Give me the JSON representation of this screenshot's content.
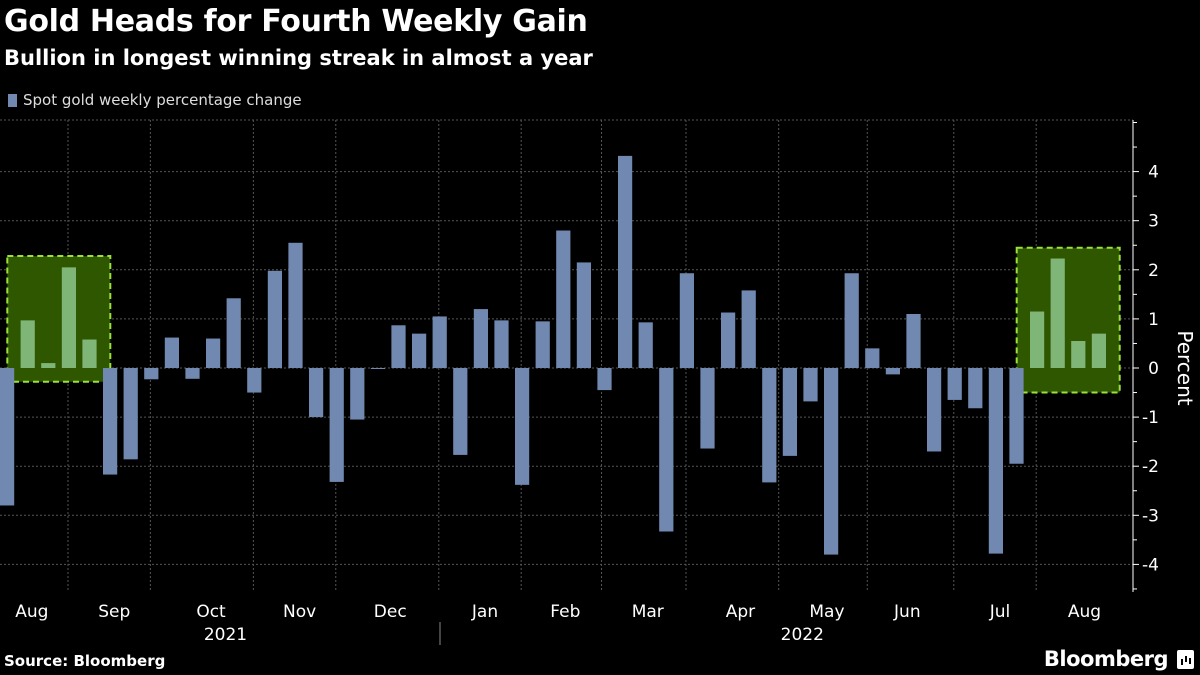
{
  "chart_data": {
    "type": "bar",
    "title": "Gold Heads for Fourth Weekly Gain",
    "subtitle": "Bullion in longest winning streak in almost a year",
    "ylabel": "Percent",
    "ylim": [
      -4.5,
      5
    ],
    "yticks": [
      -4,
      -3,
      -2,
      -1,
      0,
      1,
      2,
      3,
      4
    ],
    "grid": true,
    "legend_position": "top-left",
    "series": [
      {
        "name": "Spot gold weekly percentage change",
        "values": [
          -2.8,
          0.97,
          0.1,
          2.05,
          0.58,
          -2.17,
          -1.86,
          -0.23,
          0.62,
          -0.22,
          0.6,
          1.42,
          -0.5,
          1.98,
          2.55,
          -1.0,
          -2.32,
          -1.05,
          -0.02,
          0.87,
          0.7,
          1.05,
          -1.77,
          1.2,
          0.97,
          -2.38,
          0.95,
          2.8,
          2.15,
          -0.45,
          4.32,
          0.93,
          -3.33,
          1.93,
          -1.64,
          1.13,
          1.58,
          -2.33,
          -1.79,
          -0.68,
          -3.8,
          1.93,
          0.4,
          -0.13,
          1.1,
          -1.7,
          -0.65,
          -0.82,
          -3.78,
          -1.95,
          1.15,
          2.23,
          0.55,
          0.7
        ]
      }
    ],
    "month_labels": [
      {
        "label": "Aug",
        "week": 1.2
      },
      {
        "label": "Sep",
        "week": 5.2
      },
      {
        "label": "Oct",
        "week": 9.9
      },
      {
        "label": "Nov",
        "week": 14.2
      },
      {
        "label": "Dec",
        "week": 18.6
      },
      {
        "label": "Jan",
        "week": 23.2
      },
      {
        "label": "Feb",
        "week": 27.1
      },
      {
        "label": "Mar",
        "week": 31.1
      },
      {
        "label": "Apr",
        "week": 35.6
      },
      {
        "label": "May",
        "week": 39.8
      },
      {
        "label": "Jun",
        "week": 43.7
      },
      {
        "label": "Jul",
        "week": 48.2
      },
      {
        "label": "Aug",
        "week": 52.3
      }
    ],
    "year_labels": [
      {
        "label": "2021",
        "week": 10.6
      },
      {
        "label": "2022",
        "week": 38.6
      }
    ],
    "highlights": [
      {
        "from_week": 0.5,
        "to_week": 5.5,
        "ymin": -0.28,
        "ymax": 2.28
      },
      {
        "from_week": 49.5,
        "to_week": 54.5,
        "ymin": -0.5,
        "ymax": 2.45
      }
    ],
    "colors": {
      "bar": "#7189b0",
      "bar_highlight": "#7fb576",
      "highlight_fill": "#2e5700",
      "highlight_border": "#9be13c",
      "grid": "#555555",
      "axis": "#ffffff",
      "text": "#ffffff",
      "legend_text": "#dddddd"
    }
  },
  "footer": {
    "source": "Source: Bloomberg",
    "brand": "Bloomberg"
  }
}
